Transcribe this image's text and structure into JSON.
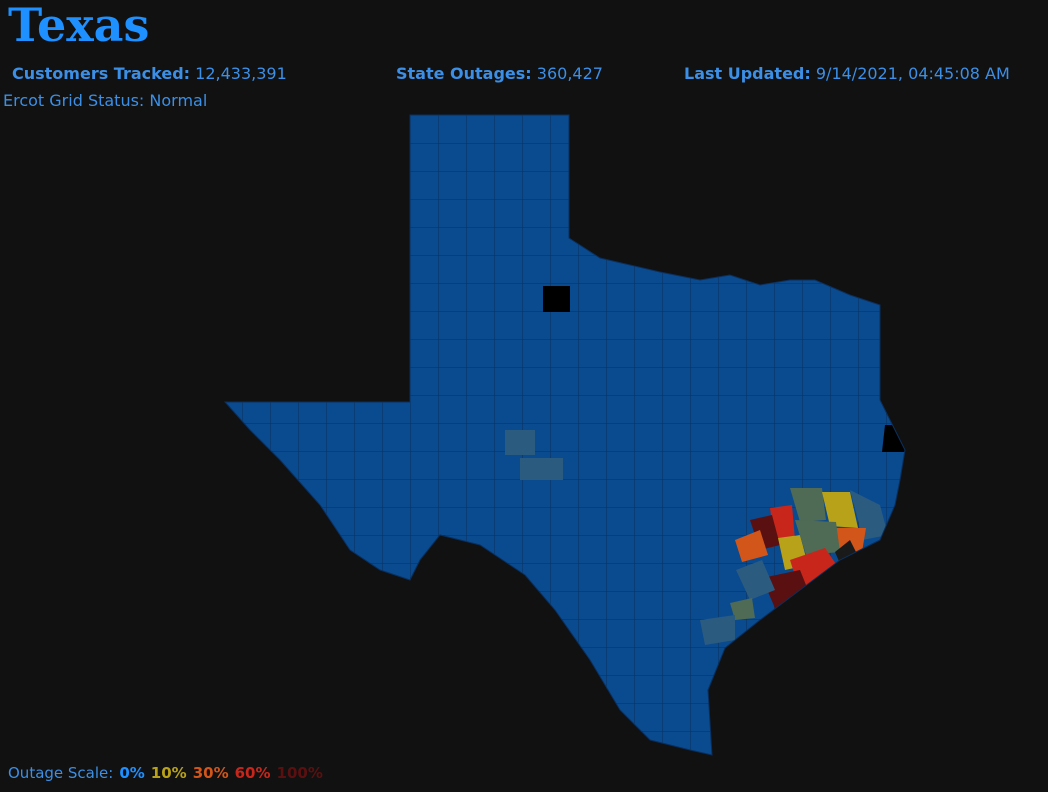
{
  "header": {
    "title": "Texas",
    "stats": [
      {
        "label": "Customers Tracked:",
        "value": "12,433,391"
      },
      {
        "label": "State Outages:",
        "value": "360,427"
      },
      {
        "label": "Last Updated:",
        "value": "9/14/2021, 04:45:08 AM"
      }
    ],
    "grid_status": "Ercot Grid Status: Normal"
  },
  "legend": {
    "label": "Outage Scale:",
    "levels": [
      {
        "text": "0%",
        "color": "#1e90ff"
      },
      {
        "text": "10%",
        "color": "#b8a21a"
      },
      {
        "text": "30%",
        "color": "#d2561a"
      },
      {
        "text": "60%",
        "color": "#c8261a"
      },
      {
        "text": "100%",
        "color": "#5a1010"
      }
    ]
  }
}
